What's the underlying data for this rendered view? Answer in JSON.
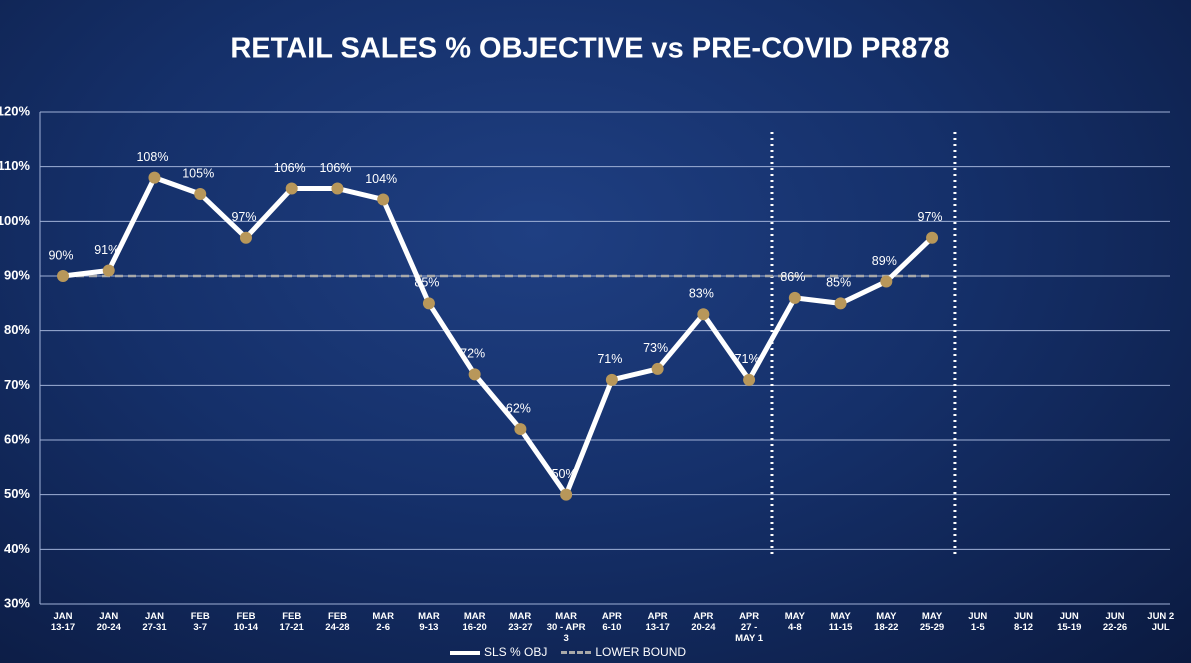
{
  "chart_data": {
    "type": "line",
    "title": "RETAIL SALES % OBJECTIVE vs PRE-COVID PR878",
    "categories": [
      "JAN\n13-17",
      "JAN\n20-24",
      "JAN\n27-31",
      "FEB\n3-7",
      "FEB\n10-14",
      "FEB\n17-21",
      "FEB\n24-28",
      "MAR\n2-6",
      "MAR\n9-13",
      "MAR\n16-20",
      "MAR\n23-27",
      "MAR\n30 - APR\n3",
      "APR\n6-10",
      "APR\n13-17",
      "APR\n20-24",
      "APR\n27 -\nMAY 1",
      "MAY\n4-8",
      "MAY\n11-15",
      "MAY\n18-22",
      "MAY\n25-29",
      "JUN\n1-5",
      "JUN\n8-12",
      "JUN\n15-19",
      "JUN\n22-26",
      "JUN 2\nJUL"
    ],
    "series": [
      {
        "name": "SLS % OBJ",
        "color": "#ffffff",
        "marker_color": "#b8975a",
        "values": [
          90,
          91,
          108,
          105,
          97,
          106,
          106,
          104,
          85,
          72,
          62,
          50,
          71,
          73,
          83,
          71,
          86,
          85,
          89,
          97,
          null,
          null,
          null,
          null,
          null
        ],
        "value_labels": [
          "90%",
          "91%",
          "108%",
          "105%",
          "97%",
          "106%",
          "106%",
          "104%",
          "85%",
          "72%",
          "62%",
          "50%",
          "71%",
          "73%",
          "83%",
          "71%",
          "86%",
          "85%",
          "89%",
          "97%",
          null,
          null,
          null,
          null,
          null
        ]
      },
      {
        "name": "LOWER BOUND",
        "color": "#a9a9a9",
        "dashed": true,
        "values": [
          90,
          90,
          90,
          90,
          90,
          90,
          90,
          90,
          90,
          90,
          90,
          90,
          90,
          90,
          90,
          90,
          90,
          90,
          90,
          90,
          null,
          null,
          null,
          null,
          null
        ]
      }
    ],
    "ylim": [
      30,
      120
    ],
    "yticks": [
      {
        "value": 30,
        "label": "30%"
      },
      {
        "value": 40,
        "label": "40%"
      },
      {
        "value": 50,
        "label": "50%"
      },
      {
        "value": 60,
        "label": "60%"
      },
      {
        "value": 70,
        "label": "70%"
      },
      {
        "value": 80,
        "label": "80%"
      },
      {
        "value": 90,
        "label": "90%"
      },
      {
        "value": 100,
        "label": "100%"
      },
      {
        "value": 110,
        "label": "110%"
      },
      {
        "value": 120,
        "label": "120%"
      }
    ],
    "grid": true
  }
}
